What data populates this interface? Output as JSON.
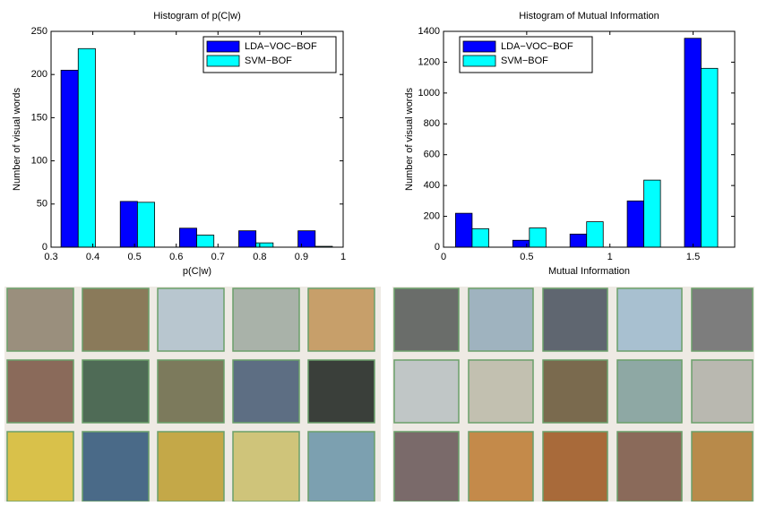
{
  "chart_data": [
    {
      "type": "bar",
      "title": "Histogram of p(C|w)",
      "xlabel": "p(C|w)",
      "ylabel": "Number of visual words",
      "x": [
        0.365,
        0.507,
        0.649,
        0.791,
        0.933
      ],
      "series": [
        {
          "name": "LDA−VOC−BOF",
          "color": "#0000ff",
          "values": [
            205,
            53,
            22,
            19,
            19
          ]
        },
        {
          "name": "SVM−BOF",
          "color": "#00ffff",
          "values": [
            230,
            52,
            14,
            5,
            1
          ]
        }
      ],
      "xlim": [
        0.3,
        1
      ],
      "xticks": [
        0.3,
        0.4,
        0.5,
        0.6,
        0.7,
        0.8,
        0.9,
        1
      ],
      "ylim": [
        0,
        250
      ],
      "yticks": [
        0,
        50,
        100,
        150,
        200,
        250
      ],
      "legend": "upper right"
    },
    {
      "type": "bar",
      "title": "Histogram of Mutual Information",
      "xlabel": "Mutual Information",
      "ylabel": "Number of visual words",
      "x": [
        0.172,
        0.516,
        0.86,
        1.204,
        1.548
      ],
      "series": [
        {
          "name": "LDA−VOC−BOF",
          "color": "#0000ff",
          "values": [
            220,
            45,
            85,
            300,
            1355
          ]
        },
        {
          "name": "SVM−BOF",
          "color": "#00ffff",
          "values": [
            120,
            125,
            165,
            435,
            1160
          ]
        }
      ],
      "xlim": [
        0,
        1.75
      ],
      "xticks": [
        0,
        0.5,
        1,
        1.5
      ],
      "ylim": [
        0,
        1400
      ],
      "yticks": [
        0,
        200,
        400,
        600,
        800,
        1000,
        1200,
        1400
      ],
      "legend": "upper left"
    }
  ]
}
